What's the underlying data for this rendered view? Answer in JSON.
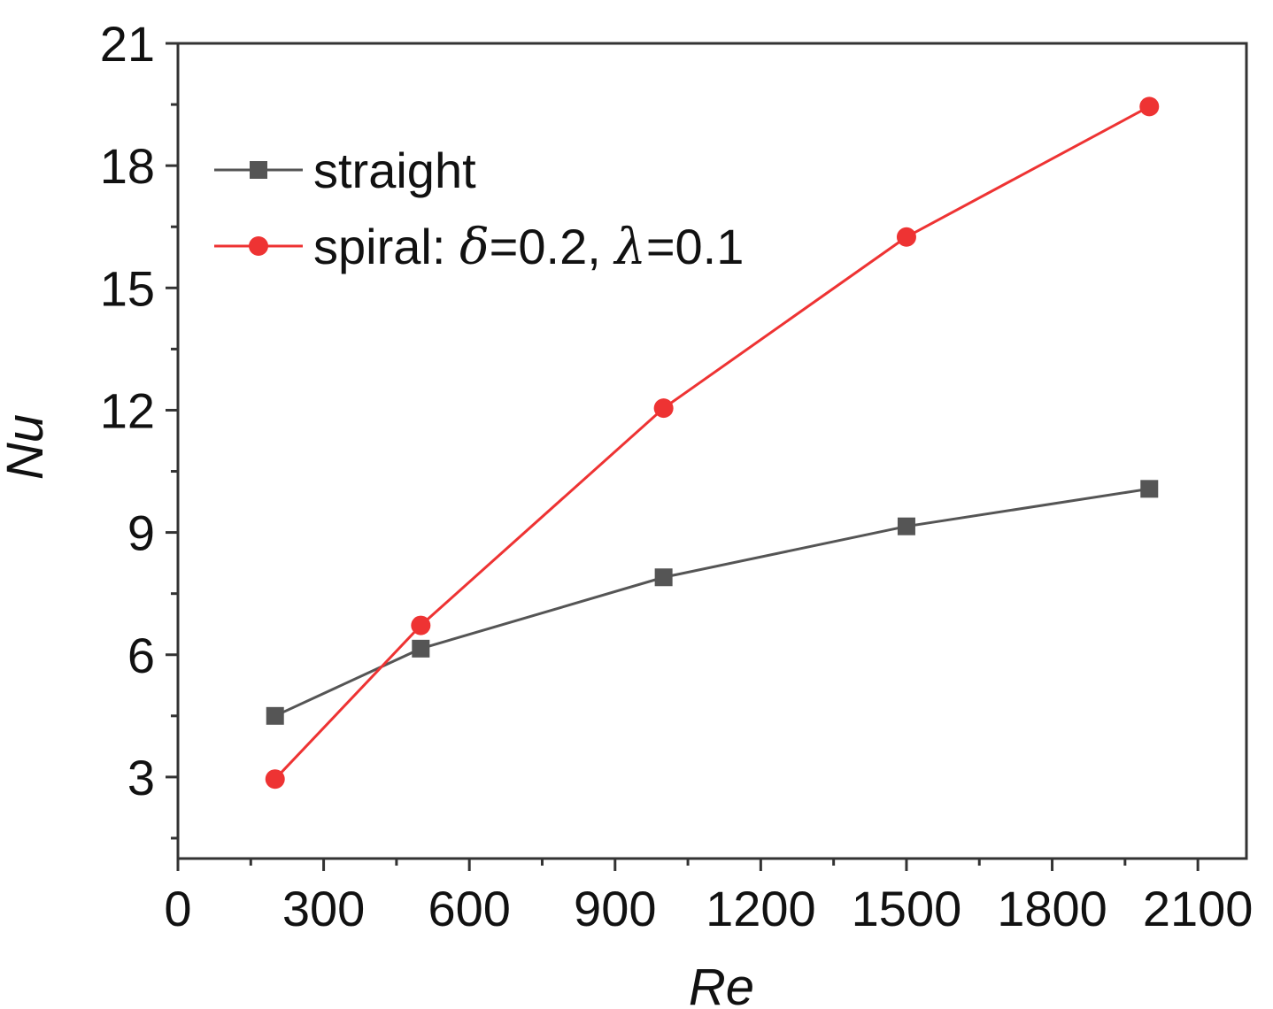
{
  "chart_data": {
    "type": "line",
    "xlabel": "Re",
    "ylabel": "Nu",
    "xlim": [
      0,
      2200
    ],
    "ylim": [
      1,
      21
    ],
    "xticks": [
      0,
      300,
      600,
      900,
      1200,
      1500,
      1800,
      2100
    ],
    "xtick_labels": [
      "0",
      "300",
      "600",
      "900",
      "1200",
      "1500",
      "1800",
      "2100"
    ],
    "yticks": [
      3,
      6,
      9,
      12,
      15,
      18,
      21
    ],
    "ytick_labels": [
      "3",
      "6",
      "9",
      "12",
      "15",
      "18",
      "21"
    ],
    "grid": false,
    "legend_position": "top-left",
    "series": [
      {
        "name": "straight",
        "color": "#555555",
        "marker": "square",
        "x": [
          200,
          500,
          1000,
          1500,
          2000
        ],
        "y": [
          4.5,
          6.15,
          7.9,
          9.15,
          10.07
        ]
      },
      {
        "name": "spiral",
        "legend_parts": {
          "prefix": "spiral: ",
          "sym1": "δ",
          "val1": "=0.2, ",
          "sym2": "λ",
          "val2": "=0.1"
        },
        "color": "#ee3333",
        "marker": "circle",
        "x": [
          200,
          500,
          1000,
          1500,
          2000
        ],
        "y": [
          2.95,
          6.72,
          12.05,
          16.25,
          19.45
        ]
      }
    ]
  }
}
